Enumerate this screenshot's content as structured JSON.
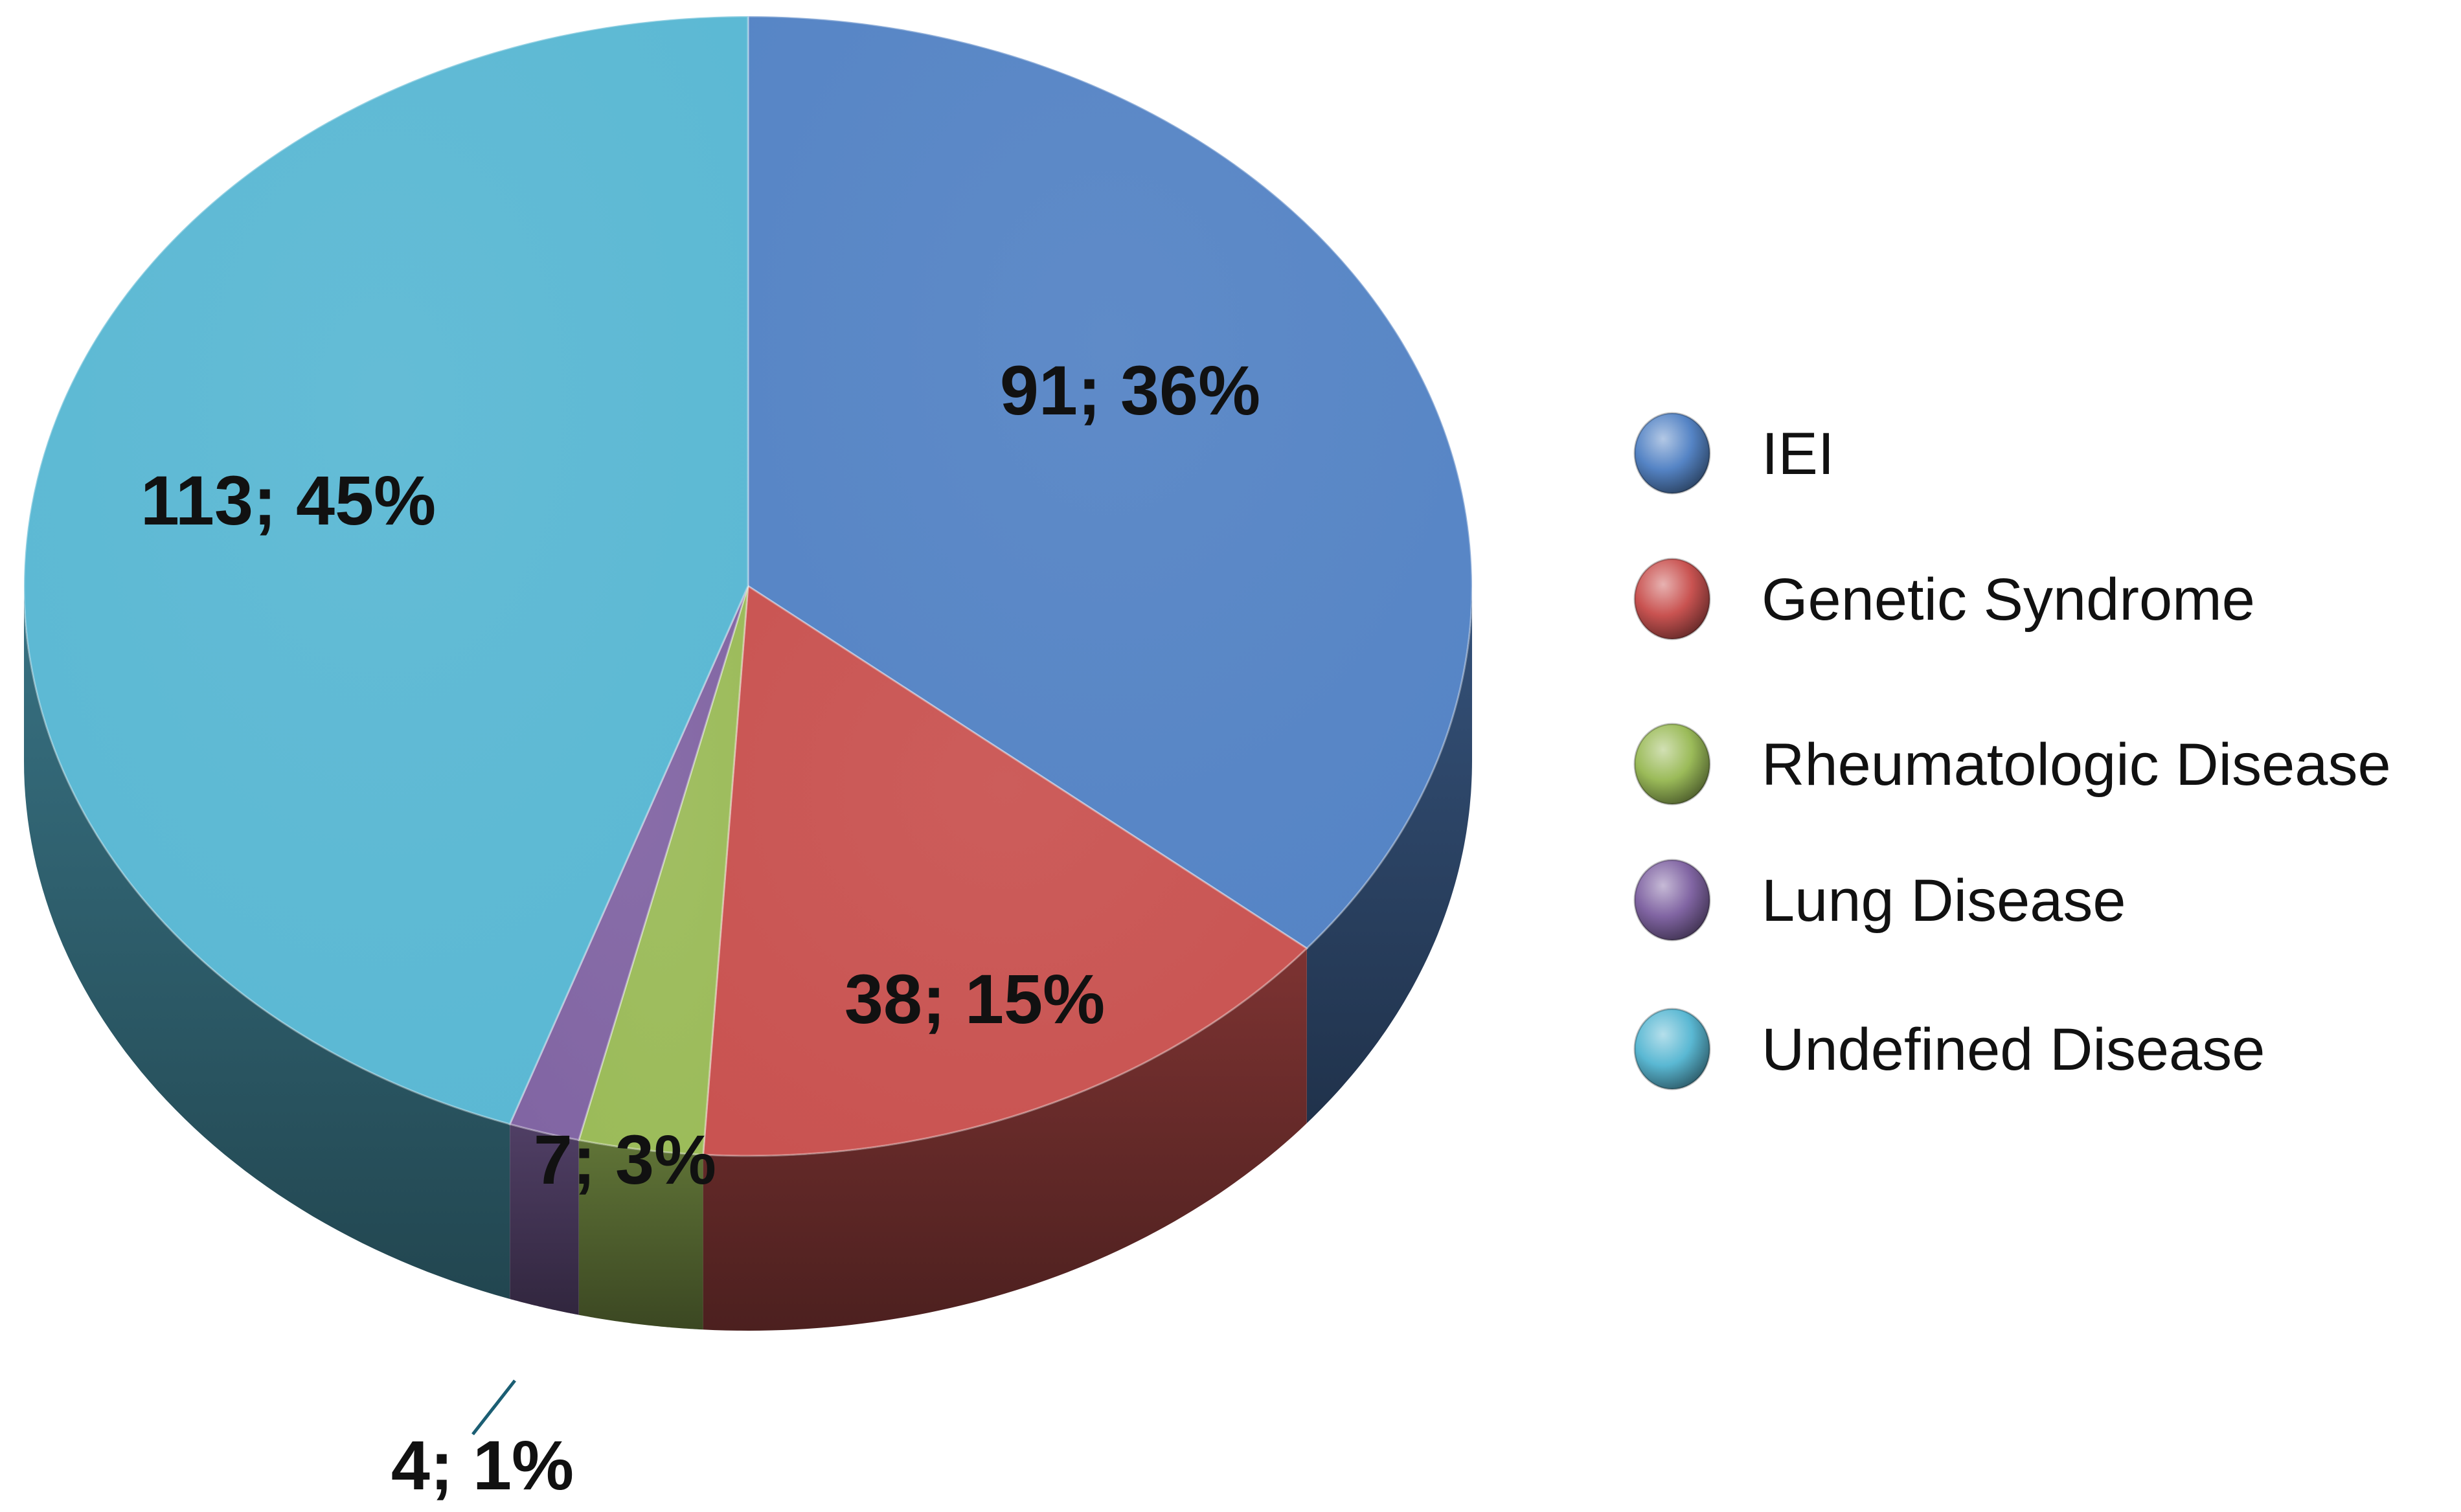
{
  "chart_data": {
    "type": "pie",
    "categories": [
      "IEI",
      "Genetic Syndrome",
      "Rheumatologic Disease",
      "Lung Disease",
      "Undefined Disease"
    ],
    "values": [
      91,
      38,
      7,
      4,
      113
    ],
    "percents": [
      36,
      15,
      3,
      1,
      45
    ],
    "data_labels": [
      "91; 36%",
      "38; 15%",
      "7; 3%",
      "4; 1%",
      "113; 45%"
    ],
    "colors": [
      "#5584c5",
      "#c95351",
      "#9bbb59",
      "#8165a3",
      "#5ab8d3"
    ],
    "legend_position": "right",
    "style": "3d"
  }
}
